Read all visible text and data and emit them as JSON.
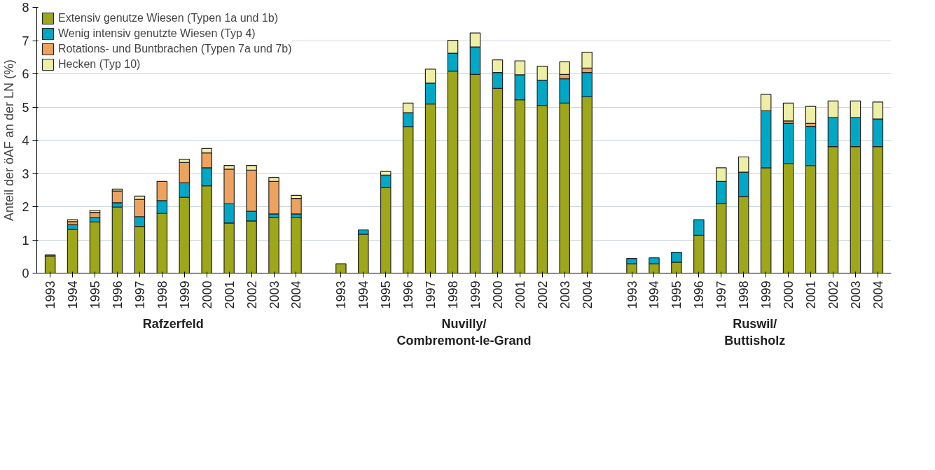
{
  "chart_data": {
    "type": "bar",
    "stacked": true,
    "ylabel": "Anteil der öAF an der LN (%)",
    "categories": [
      "1993",
      "1994",
      "1995",
      "1996",
      "1997",
      "1998",
      "1999",
      "2000",
      "2001",
      "2002",
      "2003",
      "2004",
      null,
      "1993",
      "1994",
      "1995",
      "1996",
      "1997",
      "1998",
      "1999",
      "2000",
      "2001",
      "2002",
      "2003",
      "2004",
      null,
      "1993",
      "1994",
      "1995",
      "1996",
      "1997",
      "1998",
      "1999",
      "2000",
      "2001",
      "2002",
      "2003",
      "2004"
    ],
    "annotations": [
      "Rafzerfeld",
      "Nuvilly/\nCombremont-le-Grand",
      "Ruswil/\nButtisholz"
    ],
    "series": [
      {
        "name": "Extensiv genutze Wiesen (Typen 1a und 1b)",
        "color": "#9ea619",
        "values": [
          0.52,
          1.32,
          1.54,
          1.99,
          1.41,
          1.8,
          2.28,
          2.63,
          1.51,
          1.57,
          1.67,
          1.67,
          null,
          0.28,
          1.17,
          2.57,
          4.41,
          5.09,
          6.08,
          5.98,
          5.56,
          5.22,
          5.05,
          5.12,
          5.31,
          null,
          0.28,
          0.28,
          0.33,
          1.14,
          2.09,
          2.31,
          3.17,
          3.3,
          3.24,
          3.81,
          3.81,
          3.81
        ]
      },
      {
        "name": "Wenig intensiv genutzte Wiesen (Typ 4)",
        "color": "#00a8c6",
        "values": [
          null,
          0.14,
          0.13,
          0.13,
          0.29,
          0.38,
          0.44,
          0.54,
          0.58,
          0.29,
          0.11,
          0.11,
          null,
          null,
          0.13,
          0.38,
          0.42,
          0.63,
          0.54,
          0.83,
          0.48,
          0.75,
          0.76,
          0.73,
          0.73,
          null,
          0.16,
          0.18,
          0.3,
          0.47,
          0.67,
          0.73,
          1.72,
          1.21,
          1.18,
          0.87,
          0.87,
          0.83
        ]
      },
      {
        "name": "Rotations- und Buntbrachen (Typen 7a und 7b)",
        "color": "#eda25f",
        "values": [
          null,
          0.09,
          0.16,
          0.35,
          0.52,
          0.58,
          0.61,
          0.45,
          1.04,
          1.24,
          0.98,
          0.47,
          null,
          null,
          null,
          null,
          null,
          null,
          null,
          null,
          null,
          null,
          null,
          0.13,
          0.13,
          null,
          null,
          null,
          null,
          null,
          null,
          null,
          null,
          0.07,
          0.09,
          null,
          null,
          null
        ]
      },
      {
        "name": "Hecken (Typ 10)",
        "color": "#eeeea5",
        "values": [
          0.03,
          0.06,
          0.06,
          0.06,
          0.1,
          null,
          0.1,
          0.13,
          0.11,
          0.14,
          0.12,
          0.09,
          null,
          null,
          null,
          0.11,
          0.29,
          0.42,
          0.39,
          0.42,
          0.38,
          0.42,
          0.42,
          0.38,
          0.48,
          null,
          null,
          null,
          null,
          null,
          0.41,
          0.46,
          0.49,
          0.54,
          0.51,
          0.5,
          0.5,
          0.51
        ]
      }
    ],
    "ylim": [
      0,
      8
    ],
    "yticks": [
      0,
      1,
      2,
      3,
      4,
      5,
      6,
      7,
      8
    ],
    "grid": "y",
    "legend": "top left"
  }
}
